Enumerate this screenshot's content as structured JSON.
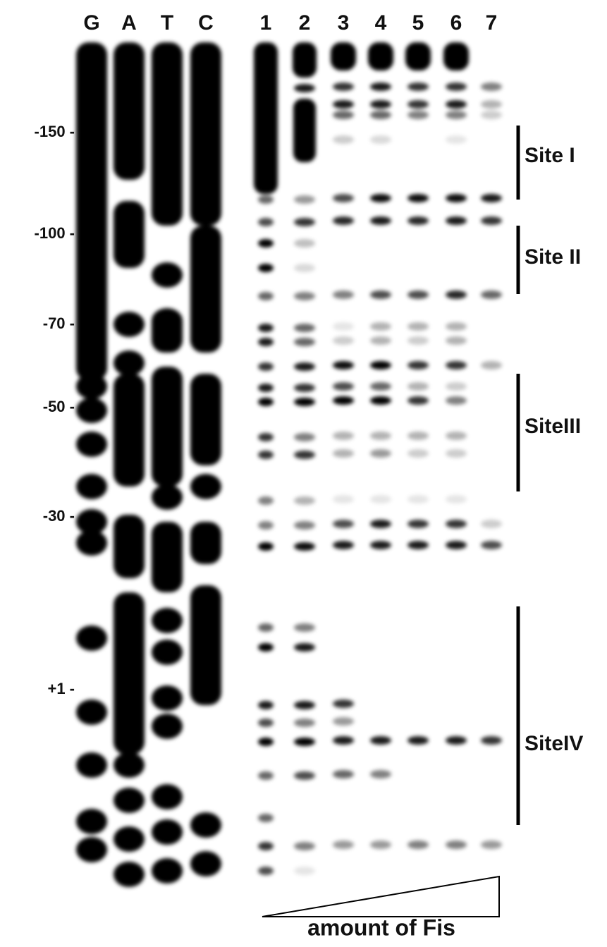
{
  "lanes": [
    "G",
    "A",
    "T",
    "C",
    "1",
    "2",
    "3",
    "4",
    "5",
    "6",
    "7"
  ],
  "positions": [
    "-150 -",
    "-100 -",
    "-70 -",
    "-50 -",
    "-30 -",
    "+1 -"
  ],
  "sites": [
    "Site I",
    "Site II",
    "SiteIII",
    "SiteIV"
  ],
  "caption": "amount of Fis"
}
